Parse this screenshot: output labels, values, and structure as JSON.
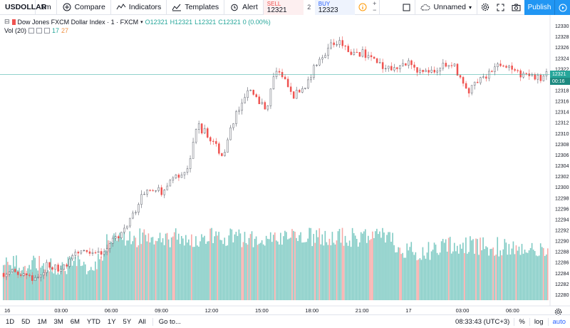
{
  "toolbar": {
    "symbol": "USDOLLAR",
    "interval": "1m",
    "compare": "Compare",
    "indicators": "Indicators",
    "templates": "Templates",
    "alert": "Alert",
    "sell_label": "SELL",
    "sell_price": "12321",
    "spread": "2",
    "buy_label": "BUY",
    "buy_price": "12323",
    "qty_plus": "+",
    "qty_minus": "−",
    "layout_name": "Unnamed",
    "publish": "Publish"
  },
  "legend": {
    "title": "Dow Jones FXCM Dollar Index · 1 · FXCM",
    "ohlc": {
      "o": "O12321",
      "h": "H12321",
      "l": "L12321",
      "c": "C12321",
      "chg": "0 (0.00%)"
    },
    "vol_label": "Vol (20)",
    "vol_up": "17",
    "vol_down": "27"
  },
  "price_axis": {
    "ticks": [
      "12330",
      "12328",
      "12326",
      "12324",
      "12322",
      "12320",
      "12318",
      "12316",
      "12314",
      "12312",
      "12310",
      "12308",
      "12306",
      "12304",
      "12302",
      "12300",
      "12298",
      "12296",
      "12294",
      "12292",
      "12290",
      "12288",
      "12286",
      "12284",
      "12282",
      "12280"
    ],
    "current_price": "12321",
    "countdown": "00:16"
  },
  "time_axis": {
    "labels": [
      "16",
      "03:00",
      "06:00",
      "09:00",
      "12:00",
      "15:00",
      "18:00",
      "21:00",
      "17",
      "03:00",
      "06:00"
    ]
  },
  "bottom": {
    "ranges": [
      "1D",
      "5D",
      "1M",
      "3M",
      "6M",
      "YTD",
      "1Y",
      "5Y",
      "All"
    ],
    "goto": "Go to...",
    "clock": "08:33:43 (UTC+3)",
    "percent": "%",
    "log": "log",
    "auto": "auto"
  },
  "colors": {
    "up": "#26a69a",
    "down": "#ef5350",
    "volume_up": "#80cbc4",
    "volume_down": "#f7a9a7",
    "accent": "#2196f3"
  },
  "chart_data": {
    "type": "candlestick",
    "price_range": [
      12279,
      12331
    ],
    "current_price": 12321,
    "close_path": [
      [
        0,
        12284
      ],
      [
        4,
        12284
      ],
      [
        6,
        12283
      ],
      [
        8,
        12283
      ],
      [
        10,
        12286
      ],
      [
        12,
        12285
      ],
      [
        14,
        12285
      ],
      [
        16,
        12287
      ],
      [
        18,
        12288
      ],
      [
        20,
        12288
      ],
      [
        22,
        12288
      ],
      [
        24,
        12289
      ],
      [
        26,
        12291
      ],
      [
        28,
        12293
      ],
      [
        30,
        12296
      ],
      [
        32,
        12299
      ],
      [
        34,
        12300
      ],
      [
        36,
        12299
      ],
      [
        38,
        12301
      ],
      [
        40,
        12302
      ],
      [
        42,
        12304
      ],
      [
        44,
        12312
      ],
      [
        46,
        12310
      ],
      [
        48,
        12308
      ],
      [
        50,
        12306
      ],
      [
        52,
        12312
      ],
      [
        54,
        12315
      ],
      [
        56,
        12318
      ],
      [
        58,
        12316
      ],
      [
        60,
        12315
      ],
      [
        62,
        12322
      ],
      [
        64,
        12320
      ],
      [
        66,
        12317
      ],
      [
        68,
        12318
      ],
      [
        70,
        12321
      ],
      [
        72,
        12324
      ],
      [
        74,
        12326
      ],
      [
        76,
        12327
      ],
      [
        78,
        12326
      ],
      [
        80,
        12325
      ],
      [
        82,
        12325
      ],
      [
        84,
        12324
      ],
      [
        86,
        12323
      ],
      [
        88,
        12322
      ],
      [
        90,
        12323
      ],
      [
        92,
        12323
      ],
      [
        94,
        12322
      ],
      [
        96,
        12321
      ],
      [
        98,
        12322
      ],
      [
        100,
        12323
      ],
      [
        102,
        12323
      ],
      [
        104,
        12321
      ],
      [
        106,
        12318
      ],
      [
        108,
        12320
      ],
      [
        110,
        12321
      ],
      [
        112,
        12322
      ],
      [
        114,
        12323
      ],
      [
        116,
        12322
      ],
      [
        118,
        12321
      ],
      [
        120,
        12321
      ],
      [
        122,
        12320
      ],
      [
        124,
        12321
      ]
    ],
    "volume_path": [
      [
        0,
        0.45
      ],
      [
        20,
        0.45
      ],
      [
        22,
        0.55
      ],
      [
        24,
        0.8
      ],
      [
        60,
        0.8
      ],
      [
        88,
        0.8
      ],
      [
        90,
        0.65
      ],
      [
        96,
        0.6
      ],
      [
        100,
        0.72
      ],
      [
        124,
        0.65
      ]
    ]
  }
}
